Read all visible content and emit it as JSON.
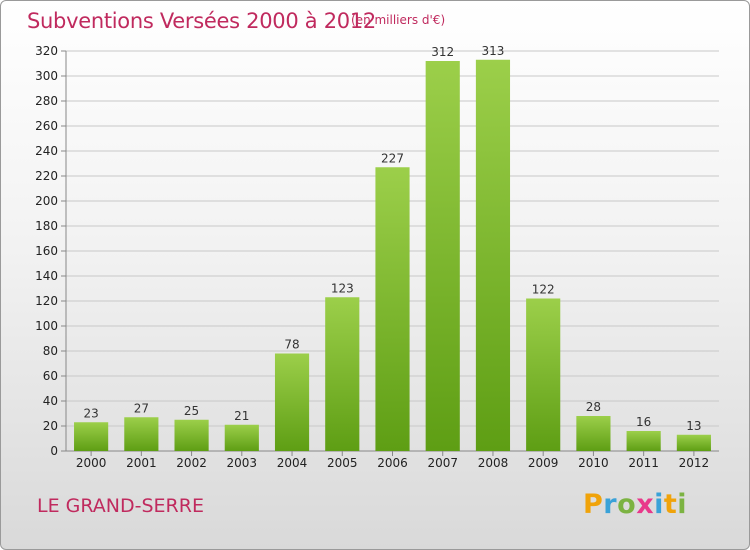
{
  "title": "Subventions Versées 2000 à 2012",
  "subtitle": "(en milliers d'€)",
  "commune": "LE GRAND-SERRE",
  "logo": {
    "letters": [
      "P",
      "r",
      "o",
      "x",
      "i",
      "t",
      "i"
    ],
    "colors": [
      "#f0a30a",
      "#3aa2d8",
      "#7cb342",
      "#e8398b",
      "#3aa2d8",
      "#f0a30a",
      "#7cb342"
    ]
  },
  "colors": {
    "bar_top": "#9ccf4a",
    "bar_bottom": "#5e9e14",
    "grid": "#c8c8c8",
    "text_accent": "#c02a5e"
  },
  "chart_data": {
    "type": "bar",
    "categories": [
      "2000",
      "2001",
      "2002",
      "2003",
      "2004",
      "2005",
      "2006",
      "2007",
      "2008",
      "2009",
      "2010",
      "2011",
      "2012"
    ],
    "values": [
      23,
      27,
      25,
      21,
      78,
      123,
      227,
      312,
      313,
      122,
      28,
      16,
      13
    ],
    "yticks": [
      0,
      20,
      40,
      60,
      80,
      100,
      120,
      140,
      160,
      180,
      200,
      220,
      240,
      260,
      280,
      300,
      320
    ],
    "ylim": [
      0,
      320
    ],
    "grid": true,
    "title": "Subventions Versées 2000 à 2012",
    "xlabel": "",
    "ylabel": ""
  }
}
